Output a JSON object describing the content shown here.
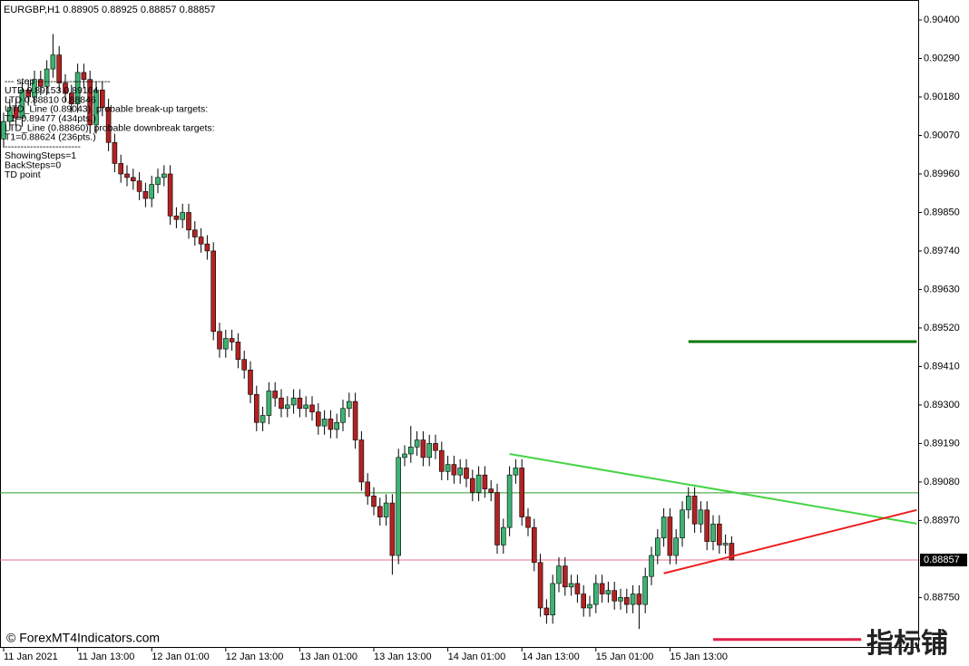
{
  "chart_data": {
    "type": "candlestick",
    "title": "EURGBP,H1  0.88905 0.88925 0.88857 0.88857",
    "up_color": "#3cb371",
    "down_color": "#b22222",
    "ylim": [
      0.88606,
      0.90457
    ],
    "yticks": [
      {
        "value": 0.904,
        "label": "0.90400"
      },
      {
        "value": 0.9029,
        "label": "0.90290"
      },
      {
        "value": 0.9018,
        "label": "0.90180"
      },
      {
        "value": 0.9007,
        "label": "0.90070"
      },
      {
        "value": 0.8996,
        "label": "0.89960"
      },
      {
        "value": 0.8985,
        "label": "0.89850"
      },
      {
        "value": 0.8974,
        "label": "0.89740"
      },
      {
        "value": 0.8963,
        "label": "0.89630"
      },
      {
        "value": 0.8952,
        "label": "0.89520"
      },
      {
        "value": 0.8941,
        "label": "0.89410"
      },
      {
        "value": 0.893,
        "label": "0.89300"
      },
      {
        "value": 0.8919,
        "label": "0.89190"
      },
      {
        "value": 0.8908,
        "label": "0.89080"
      },
      {
        "value": 0.8897,
        "label": "0.88970"
      },
      {
        "value": 0.8875,
        "label": "0.88750"
      }
    ],
    "last_price": {
      "value": 0.88857,
      "label": "0.88857"
    },
    "categories": [
      "11 Jan 2021",
      null,
      null,
      null,
      null,
      null,
      null,
      null,
      null,
      null,
      null,
      null,
      "11 Jan 13:00",
      null,
      null,
      null,
      null,
      null,
      null,
      null,
      null,
      null,
      null,
      null,
      "12 Jan 01:00",
      null,
      null,
      null,
      null,
      null,
      null,
      null,
      null,
      null,
      null,
      null,
      "12 Jan 13:00",
      null,
      null,
      null,
      null,
      null,
      null,
      null,
      null,
      null,
      null,
      null,
      "13 Jan 01:00",
      null,
      null,
      null,
      null,
      null,
      null,
      null,
      null,
      null,
      null,
      null,
      "13 Jan 13:00",
      null,
      null,
      null,
      null,
      null,
      null,
      null,
      null,
      null,
      null,
      null,
      "14 Jan 01:00",
      null,
      null,
      null,
      null,
      null,
      null,
      null,
      null,
      null,
      null,
      null,
      "14 Jan 13:00",
      null,
      null,
      null,
      null,
      null,
      null,
      null,
      null,
      null,
      null,
      null,
      "15 Jan 01:00",
      null,
      null,
      null,
      null,
      null,
      null,
      null,
      null,
      null,
      null,
      null,
      "15 Jan 13:00",
      null,
      null,
      null,
      null,
      null,
      null,
      null,
      null,
      null,
      null
    ],
    "open": [
      0.9006,
      0.9011,
      0.9015,
      0.9012,
      0.902,
      0.9018,
      0.9023,
      0.9021,
      0.9026,
      0.903,
      0.9022,
      0.9019,
      0.9016,
      0.9025,
      0.9023,
      0.901,
      0.902,
      0.9015,
      0.9005,
      0.8999,
      0.8996,
      0.8995,
      0.8994,
      0.8991,
      0.8989,
      0.8993,
      0.8995,
      0.8996,
      0.8984,
      0.8983,
      0.8985,
      0.898,
      0.8978,
      0.8976,
      0.8974,
      0.8951,
      0.8946,
      0.8949,
      0.8948,
      0.8943,
      0.894,
      0.8933,
      0.8925,
      0.8927,
      0.8934,
      0.8932,
      0.8929,
      0.893,
      0.8932,
      0.8929,
      0.893,
      0.8928,
      0.8924,
      0.8926,
      0.8923,
      0.8925,
      0.8929,
      0.8931,
      0.892,
      0.8908,
      0.8904,
      0.8901,
      0.8898,
      0.8902,
      0.8887,
      0.8915,
      0.8916,
      0.8918,
      0.892,
      0.8915,
      0.8919,
      0.8917,
      0.8911,
      0.8913,
      0.891,
      0.8912,
      0.8909,
      0.8905,
      0.891,
      0.8906,
      0.8905,
      0.889,
      0.8895,
      0.891,
      0.8912,
      0.8898,
      0.8895,
      0.8885,
      0.8872,
      0.887,
      0.8879,
      0.8884,
      0.8878,
      0.8879,
      0.8876,
      0.8872,
      0.8873,
      0.8879,
      0.8876,
      0.8877,
      0.8874,
      0.8875,
      0.8873,
      0.8876,
      0.8873,
      0.8881,
      0.8887,
      0.8892,
      0.8898,
      0.8887,
      0.8892,
      0.89,
      0.8904,
      0.8896,
      0.89,
      0.8891,
      0.8896,
      0.889,
      0.88905
    ],
    "high": [
      0.90135,
      0.90175,
      0.90175,
      0.90225,
      0.90225,
      0.90255,
      0.90255,
      0.90285,
      0.9036,
      0.90325,
      0.90245,
      0.90215,
      0.90275,
      0.90275,
      0.90255,
      0.90225,
      0.90225,
      0.90175,
      0.90075,
      0.90015,
      0.89985,
      0.89975,
      0.89965,
      0.89935,
      0.89955,
      0.89975,
      0.89985,
      0.89985,
      0.89865,
      0.89875,
      0.89875,
      0.89825,
      0.89805,
      0.89785,
      0.89765,
      0.89535,
      0.89515,
      0.89515,
      0.89505,
      0.89455,
      0.89425,
      0.89355,
      0.89295,
      0.89365,
      0.89365,
      0.89345,
      0.89325,
      0.89345,
      0.89345,
      0.89325,
      0.89325,
      0.89305,
      0.89285,
      0.89285,
      0.89275,
      0.89315,
      0.89335,
      0.89335,
      0.89225,
      0.89105,
      0.89065,
      0.89035,
      0.89045,
      0.89045,
      0.89175,
      0.89185,
      0.8924,
      0.89225,
      0.89225,
      0.89215,
      0.89215,
      0.89195,
      0.89155,
      0.89155,
      0.89145,
      0.89145,
      0.89115,
      0.89125,
      0.89125,
      0.89085,
      0.89075,
      0.88975,
      0.89125,
      0.89145,
      0.89145,
      0.89005,
      0.88975,
      0.88875,
      0.88745,
      0.88815,
      0.88865,
      0.88865,
      0.88815,
      0.88815,
      0.88785,
      0.88755,
      0.88815,
      0.88815,
      0.88795,
      0.88795,
      0.88775,
      0.88775,
      0.88785,
      0.88785,
      0.88835,
      0.88895,
      0.88945,
      0.89005,
      0.89005,
      0.88945,
      0.89025,
      0.89065,
      0.89065,
      0.89025,
      0.89025,
      0.88985,
      0.88985,
      0.8893,
      0.88925
    ],
    "low": [
      0.90035,
      0.90085,
      0.90095,
      0.90095,
      0.90155,
      0.90155,
      0.90185,
      0.90185,
      0.90235,
      0.90195,
      0.90165,
      0.90135,
      0.90135,
      0.90205,
      0.90075,
      0.90075,
      0.90125,
      0.90025,
      0.89965,
      0.89935,
      0.89925,
      0.89915,
      0.89885,
      0.89865,
      0.89865,
      0.89905,
      0.89925,
      0.89815,
      0.89805,
      0.89805,
      0.89775,
      0.89755,
      0.89735,
      0.89715,
      0.89485,
      0.89435,
      0.89435,
      0.89455,
      0.89405,
      0.89375,
      0.89305,
      0.89225,
      0.89225,
      0.89245,
      0.89295,
      0.89265,
      0.89265,
      0.89275,
      0.89265,
      0.89265,
      0.89255,
      0.89215,
      0.89215,
      0.89205,
      0.89205,
      0.89225,
      0.89265,
      0.89175,
      0.89055,
      0.89015,
      0.88985,
      0.88955,
      0.88955,
      0.88815,
      0.88845,
      0.89125,
      0.89135,
      0.89155,
      0.89125,
      0.89125,
      0.89145,
      0.89085,
      0.89085,
      0.89075,
      0.89075,
      0.89065,
      0.89025,
      0.89025,
      0.89035,
      0.89025,
      0.88875,
      0.88875,
      0.88925,
      0.89075,
      0.88955,
      0.88925,
      0.88825,
      0.88695,
      0.88675,
      0.88675,
      0.88765,
      0.88755,
      0.88755,
      0.88735,
      0.88695,
      0.88695,
      0.88705,
      0.88735,
      0.88735,
      0.88715,
      0.88715,
      0.88705,
      0.88705,
      0.8866,
      0.88705,
      0.88785,
      0.88845,
      0.88895,
      0.88845,
      0.88845,
      0.88895,
      0.88975,
      0.88935,
      0.88935,
      0.88885,
      0.88885,
      0.88875,
      0.88875,
      0.88857
    ],
    "close": [
      0.9011,
      0.9015,
      0.9012,
      0.902,
      0.9018,
      0.9023,
      0.9021,
      0.9026,
      0.903,
      0.9022,
      0.9019,
      0.9016,
      0.9025,
      0.9023,
      0.901,
      0.902,
      0.9015,
      0.9005,
      0.8999,
      0.8996,
      0.8995,
      0.8994,
      0.8991,
      0.8989,
      0.8993,
      0.8995,
      0.8996,
      0.8984,
      0.8983,
      0.8985,
      0.898,
      0.8978,
      0.8976,
      0.8974,
      0.8951,
      0.8946,
      0.8949,
      0.8948,
      0.8943,
      0.894,
      0.8933,
      0.8925,
      0.8927,
      0.8934,
      0.8932,
      0.8929,
      0.893,
      0.8932,
      0.8929,
      0.893,
      0.8928,
      0.8924,
      0.8926,
      0.8923,
      0.8925,
      0.8929,
      0.8931,
      0.892,
      0.8908,
      0.8904,
      0.8901,
      0.8898,
      0.8902,
      0.8887,
      0.8915,
      0.8916,
      0.8918,
      0.892,
      0.8915,
      0.8919,
      0.8917,
      0.8911,
      0.8913,
      0.891,
      0.8912,
      0.8909,
      0.8905,
      0.891,
      0.8906,
      0.8905,
      0.889,
      0.8895,
      0.891,
      0.8912,
      0.8898,
      0.8895,
      0.8885,
      0.8872,
      0.887,
      0.8879,
      0.8884,
      0.8878,
      0.8879,
      0.8876,
      0.8872,
      0.8873,
      0.8879,
      0.8876,
      0.8877,
      0.8874,
      0.8875,
      0.8873,
      0.8876,
      0.8873,
      0.8881,
      0.8887,
      0.8892,
      0.8898,
      0.8887,
      0.8892,
      0.89,
      0.8904,
      0.8896,
      0.89,
      0.8891,
      0.8896,
      0.889,
      0.88905,
      0.88857
    ],
    "hlines": [
      {
        "color": "#2e9e2e",
        "value": 0.89049
      }
    ],
    "last_line_color": "#e8708a",
    "levels": [
      {
        "color": "#0a7a0a",
        "x": [
          111,
          148
        ],
        "value": 0.89481
      },
      {
        "color": "#e0204a",
        "x": [
          115,
          139
        ],
        "value": 0.8863
      }
    ],
    "trendlines": [
      {
        "color": "#44d444",
        "x": [
          82,
          148
        ],
        "y": [
          0.8916,
          0.88961
        ]
      },
      {
        "color": "#ee1c1c",
        "x": [
          107,
          148
        ],
        "y": [
          0.88819,
          0.89
        ]
      }
    ],
    "indicator_text": [
      "---   step   -----------------------",
      "UTD  0.89153  0.89164",
      "LTD  0.88810  0.88846",
      "UTD_Line (0.89043), probable break-up targets:",
      "T1=0.89477 (434pts.)",
      "LTD_Line (0.88860), probable downbreak targets:",
      "T1=0.88624 (236pts.)",
      "------------------------",
      "ShowingSteps=1",
      "BackSteps=0",
      "TD point"
    ],
    "watermark": "© ForexMT4Indicators.com",
    "logo": "指标铺"
  }
}
